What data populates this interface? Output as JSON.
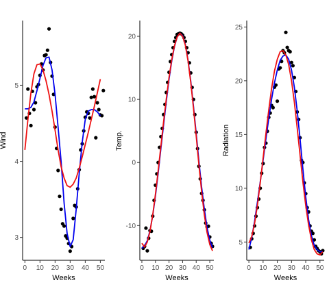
{
  "colors": {
    "points": "#000000",
    "smooth_blue": "#0000ee",
    "harmonic_red": "#ee1111"
  },
  "chart_data": [
    {
      "type": "scatter",
      "xlabel": "Weeks",
      "ylabel": "Wind",
      "xlim": [
        -1.5,
        53
      ],
      "ylim": [
        2.7,
        5.85
      ],
      "xticks": [
        0,
        10,
        20,
        30,
        40,
        50
      ],
      "yticks": [
        3,
        4,
        5
      ],
      "points": {
        "x": [
          1,
          2,
          3,
          4,
          5,
          6,
          7,
          8,
          9,
          10,
          11,
          12,
          13,
          14,
          15,
          16,
          17,
          18,
          19,
          20,
          21,
          22,
          23,
          24,
          25,
          26,
          27,
          28,
          29,
          30,
          31,
          32,
          33,
          34,
          35,
          36,
          37,
          38,
          39,
          40,
          41,
          42,
          43,
          44,
          45,
          46,
          47,
          48,
          49,
          50,
          51,
          52
        ],
        "y": [
          4.57,
          4.95,
          4.63,
          4.47,
          4.92,
          4.68,
          4.77,
          4.98,
          5.01,
          5.13,
          5.28,
          5.2,
          5.39,
          5.4,
          5.46,
          5.74,
          5.3,
          5.12,
          4.88,
          4.45,
          4.17,
          3.88,
          3.54,
          3.37,
          3.18,
          3.15,
          3.02,
          2.99,
          2.92,
          2.82,
          2.88,
          3.25,
          3.42,
          3.4,
          3.64,
          3.89,
          4.15,
          4.23,
          4.4,
          4.58,
          4.65,
          4.63,
          4.57,
          4.84,
          4.95,
          4.85,
          4.31,
          4.77,
          4.68,
          4.61,
          4.6,
          4.93
        ]
      },
      "series": [
        {
          "kind": "smooth",
          "x": [
            0,
            2,
            4,
            6,
            8,
            10,
            12,
            14,
            16,
            18,
            20,
            22,
            24,
            26,
            28,
            30,
            32,
            34,
            36,
            38,
            40,
            42,
            44,
            46,
            48,
            50
          ],
          "y": [
            4.69,
            4.69,
            4.71,
            4.78,
            4.93,
            5.09,
            5.26,
            5.36,
            5.37,
            5.2,
            4.88,
            4.45,
            4.0,
            3.45,
            3.05,
            2.88,
            2.97,
            3.37,
            3.84,
            4.25,
            4.55,
            4.66,
            4.68,
            4.68,
            4.65,
            4.6
          ]
        },
        {
          "kind": "harmonic",
          "x": [
            0,
            2,
            4,
            6,
            8,
            10,
            12,
            14,
            16,
            18,
            20,
            22,
            24,
            26,
            28,
            30,
            32,
            34,
            36,
            38,
            40,
            42,
            44,
            46,
            48,
            50
          ],
          "y": [
            4.15,
            4.55,
            4.9,
            5.15,
            5.27,
            5.28,
            5.2,
            5.06,
            4.88,
            4.66,
            4.41,
            4.15,
            3.93,
            3.78,
            3.68,
            3.66,
            3.7,
            3.78,
            3.91,
            4.06,
            4.22,
            4.38,
            4.55,
            4.72,
            4.9,
            5.08
          ]
        }
      ]
    },
    {
      "type": "scatter",
      "xlabel": "Weeks",
      "ylabel": "Temp.",
      "xlim": [
        -1.5,
        53
      ],
      "ylim": [
        -15.5,
        22.5
      ],
      "xticks": [
        0,
        10,
        20,
        30,
        40,
        50
      ],
      "yticks": [
        -10,
        0,
        10,
        20
      ],
      "points": {
        "x": [
          1,
          2,
          3,
          4,
          5,
          6,
          7,
          8,
          9,
          10,
          11,
          12,
          13,
          14,
          15,
          16,
          17,
          18,
          19,
          20,
          21,
          22,
          23,
          24,
          25,
          26,
          27,
          28,
          29,
          30,
          31,
          32,
          33,
          34,
          35,
          36,
          37,
          38,
          39,
          40,
          41,
          42,
          43,
          44,
          45,
          46,
          47,
          48,
          49,
          50,
          51,
          52
        ],
        "y": [
          -13.6,
          -13.3,
          -10.4,
          -14.0,
          -12.0,
          -10.8,
          -10.9,
          -8.5,
          -6.0,
          -3.6,
          -1.8,
          0.0,
          2.4,
          4.1,
          5.4,
          7.6,
          9.2,
          11.1,
          12.7,
          14.3,
          16.0,
          17.1,
          18.2,
          19.2,
          19.8,
          20.3,
          20.4,
          20.5,
          20.4,
          20.2,
          19.8,
          19.2,
          18.2,
          17.4,
          15.8,
          14.2,
          11.9,
          10.0,
          7.6,
          4.8,
          2.2,
          -0.6,
          -2.6,
          -4.9,
          -6.0,
          -7.5,
          -9.6,
          -10.2,
          -10.1,
          -11.8,
          -12.8,
          -13.3
        ]
      },
      "series": [
        {
          "kind": "smooth",
          "x": [
            0,
            2,
            4,
            6,
            8,
            10,
            12,
            14,
            16,
            18,
            20,
            22,
            24,
            26,
            28,
            30,
            32,
            34,
            36,
            38,
            40,
            42,
            44,
            46,
            48,
            50,
            52
          ],
          "y": [
            -13.6,
            -13.2,
            -12.4,
            -10.8,
            -8.4,
            -5.3,
            -1.7,
            2.2,
            6.0,
            9.7,
            13.2,
            16.1,
            18.4,
            19.9,
            20.5,
            20.1,
            18.7,
            16.2,
            12.9,
            8.9,
            4.6,
            0.2,
            -3.9,
            -7.4,
            -10.3,
            -12.3,
            -13.5
          ]
        },
        {
          "kind": "harmonic",
          "x": [
            0,
            2,
            4,
            6,
            8,
            10,
            12,
            14,
            16,
            18,
            20,
            22,
            24,
            26,
            28,
            30,
            32,
            34,
            36,
            38,
            40,
            42,
            44,
            46,
            48,
            50,
            52
          ],
          "y": [
            -12.8,
            -13.4,
            -12.6,
            -10.9,
            -8.3,
            -5.0,
            -1.3,
            2.6,
            6.5,
            10.1,
            13.5,
            16.3,
            18.5,
            19.9,
            20.5,
            20.0,
            18.6,
            16.1,
            12.7,
            8.6,
            4.2,
            -0.4,
            -4.6,
            -8.3,
            -11.1,
            -13.0,
            -14.0
          ]
        }
      ]
    },
    {
      "type": "scatter",
      "xlabel": "Weeks",
      "ylabel": "Radiation",
      "xlim": [
        -1.5,
        53
      ],
      "ylim": [
        3.3,
        25.6
      ],
      "xticks": [
        0,
        10,
        20,
        30,
        40,
        50
      ],
      "yticks": [
        5,
        10,
        15,
        20,
        25
      ],
      "points": {
        "x": [
          1,
          2,
          3,
          4,
          5,
          6,
          7,
          8,
          9,
          10,
          11,
          12,
          13,
          14,
          15,
          16,
          17,
          18,
          19,
          20,
          21,
          22,
          23,
          24,
          25,
          26,
          27,
          28,
          29,
          30,
          31,
          32,
          33,
          34,
          35,
          36,
          37,
          38,
          39,
          40,
          41,
          42,
          43,
          44,
          45,
          46,
          47,
          48,
          49,
          50,
          51,
          52
        ],
        "y": [
          4.5,
          5.3,
          5.8,
          6.5,
          7.4,
          8.2,
          9.0,
          10.0,
          11.4,
          12.3,
          13.8,
          14.2,
          15.3,
          16.6,
          17.0,
          17.7,
          17.5,
          19.4,
          19.6,
          18.1,
          21.1,
          21.2,
          21.8,
          22.8,
          22.6,
          24.5,
          23.1,
          22.8,
          22.7,
          21.7,
          21.4,
          20.3,
          19.0,
          17.1,
          16.4,
          14.7,
          12.6,
          12.4,
          10.5,
          9.5,
          8.2,
          7.8,
          6.5,
          6.0,
          5.8,
          5.2,
          4.6,
          4.4,
          4.2,
          4.1,
          3.9,
          4.2
        ]
      },
      "series": [
        {
          "kind": "smooth",
          "x": [
            0,
            2,
            4,
            6,
            8,
            10,
            12,
            14,
            16,
            18,
            20,
            22,
            24,
            26,
            28,
            30,
            32,
            34,
            36,
            38,
            40,
            42,
            44,
            46,
            48,
            50,
            52
          ],
          "y": [
            4.3,
            5.4,
            6.9,
            8.7,
            10.6,
            12.6,
            14.6,
            16.5,
            18.3,
            19.8,
            21.0,
            21.9,
            22.3,
            22.4,
            22.0,
            21.0,
            19.4,
            17.2,
            14.6,
            11.8,
            9.2,
            7.1,
            5.6,
            4.7,
            4.3,
            4.1,
            4.1
          ]
        },
        {
          "kind": "harmonic",
          "x": [
            0,
            2,
            4,
            6,
            8,
            10,
            12,
            14,
            16,
            18,
            20,
            22,
            24,
            26,
            28,
            30,
            32,
            34,
            36,
            38,
            40,
            42,
            44,
            46,
            48,
            50,
            52
          ],
          "y": [
            4.9,
            5.5,
            6.7,
            8.4,
            10.5,
            12.8,
            15.1,
            17.3,
            19.3,
            20.9,
            22.0,
            22.7,
            22.8,
            22.4,
            21.5,
            20.0,
            18.0,
            15.6,
            13.1,
            10.6,
            8.4,
            6.6,
            5.2,
            4.3,
            3.9,
            3.8,
            4.1
          ]
        }
      ]
    }
  ]
}
